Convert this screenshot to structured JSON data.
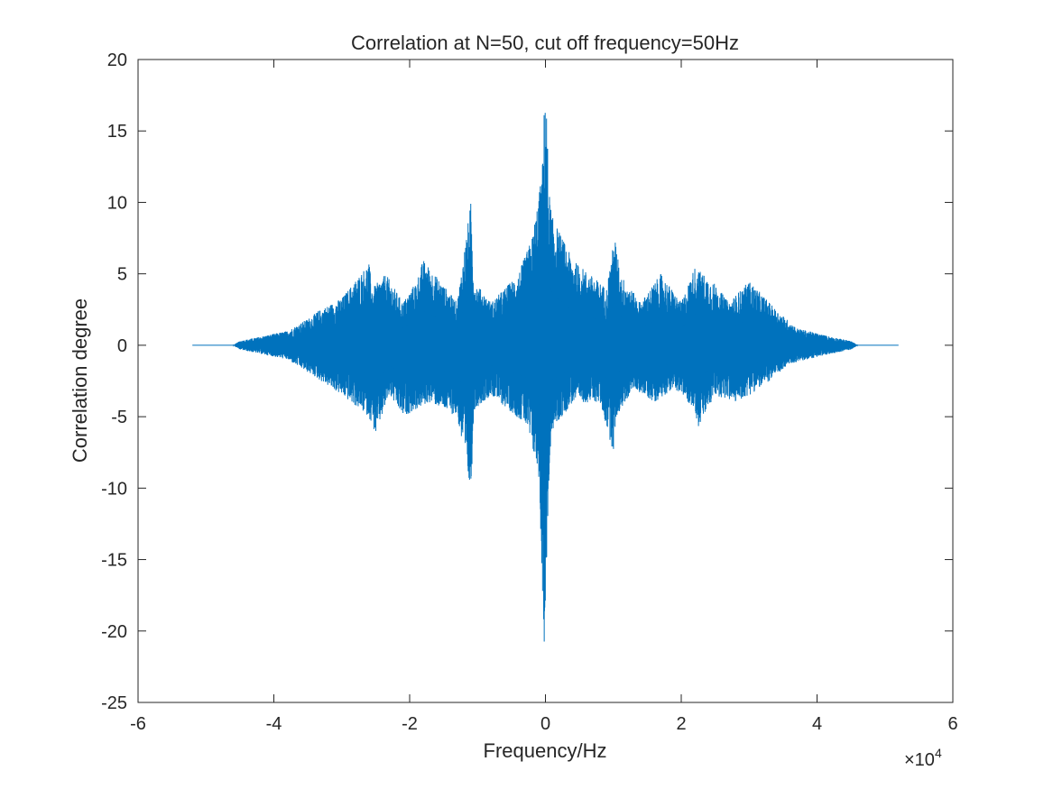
{
  "chart_data": {
    "type": "line",
    "title": "Correlation at N=50, cut off frequency=50Hz",
    "xlabel": "Frequency/Hz",
    "ylabel": "Correlation degree",
    "x_exponent_label": "×10",
    "x_exponent": "4",
    "xlim": [
      -60000,
      60000
    ],
    "ylim": [
      -25,
      20
    ],
    "x_ticks": [
      -60000,
      -40000,
      -20000,
      0,
      20000,
      40000,
      60000
    ],
    "x_tick_labels": [
      "-6",
      "-4",
      "-2",
      "0",
      "2",
      "4",
      "6"
    ],
    "y_ticks": [
      -25,
      -20,
      -15,
      -10,
      -5,
      0,
      5,
      10,
      15,
      20
    ],
    "y_tick_labels": [
      "-25",
      "-20",
      "-15",
      "-10",
      "-5",
      "0",
      "5",
      "10",
      "15",
      "20"
    ],
    "grid": false,
    "series": [
      {
        "color": "#0072BD",
        "x_range": [
          -52000,
          52000
        ],
        "upper_envelope": {
          "x": [
            -52000,
            -46000,
            -45000,
            -42000,
            -38000,
            -34500,
            -33500,
            -30000,
            -26000,
            -25500,
            -23500,
            -21000,
            -19000,
            -18000,
            -13000,
            -11000,
            -10500,
            -8000,
            -4000,
            -2000,
            -500,
            0,
            500,
            1000,
            4000,
            9000,
            10200,
            11000,
            14000,
            17000,
            20000,
            22000,
            25000,
            27000,
            30000,
            33000,
            33500,
            37000,
            42000,
            45000,
            46000,
            52000
          ],
          "y": [
            0,
            0,
            0.3,
            0.6,
            1.0,
            2.0,
            2.4,
            3.3,
            5.8,
            4.0,
            5.0,
            3.0,
            4.5,
            6.0,
            3.0,
            10.0,
            4.5,
            3.0,
            5.0,
            7.5,
            12.0,
            19.3,
            11.0,
            9.0,
            6.0,
            4.0,
            7.7,
            5.0,
            3.0,
            5.0,
            3.0,
            5.5,
            4.3,
            3.0,
            4.5,
            3.0,
            2.7,
            1.2,
            0.6,
            0.3,
            0,
            0
          ]
        },
        "lower_envelope": {
          "x": [
            -52000,
            -46000,
            -45000,
            -42000,
            -38000,
            -34000,
            -30000,
            -26000,
            -25000,
            -23000,
            -21000,
            -17000,
            -13000,
            -11000,
            -10500,
            -8000,
            -3000,
            -1000,
            -400,
            -100,
            200,
            500,
            1000,
            4000,
            8000,
            10000,
            10500,
            13000,
            16000,
            19000,
            22000,
            22500,
            25000,
            28000,
            30000,
            33000,
            36000,
            42000,
            45000,
            46000,
            52000
          ],
          "y": [
            0,
            0,
            -0.3,
            -0.6,
            -1.0,
            -2.2,
            -3.5,
            -5.0,
            -6.3,
            -3.5,
            -5.0,
            -4.0,
            -5.0,
            -10.5,
            -4.5,
            -3.5,
            -5.5,
            -9.0,
            -17.7,
            -22.8,
            -14.5,
            -10.0,
            -6.0,
            -4.0,
            -4.0,
            -7.5,
            -5.0,
            -3.0,
            -4.0,
            -3.0,
            -4.5,
            -5.8,
            -3.5,
            -4.0,
            -3.5,
            -2.5,
            -1.3,
            -0.6,
            -0.3,
            0,
            0
          ]
        }
      }
    ]
  }
}
